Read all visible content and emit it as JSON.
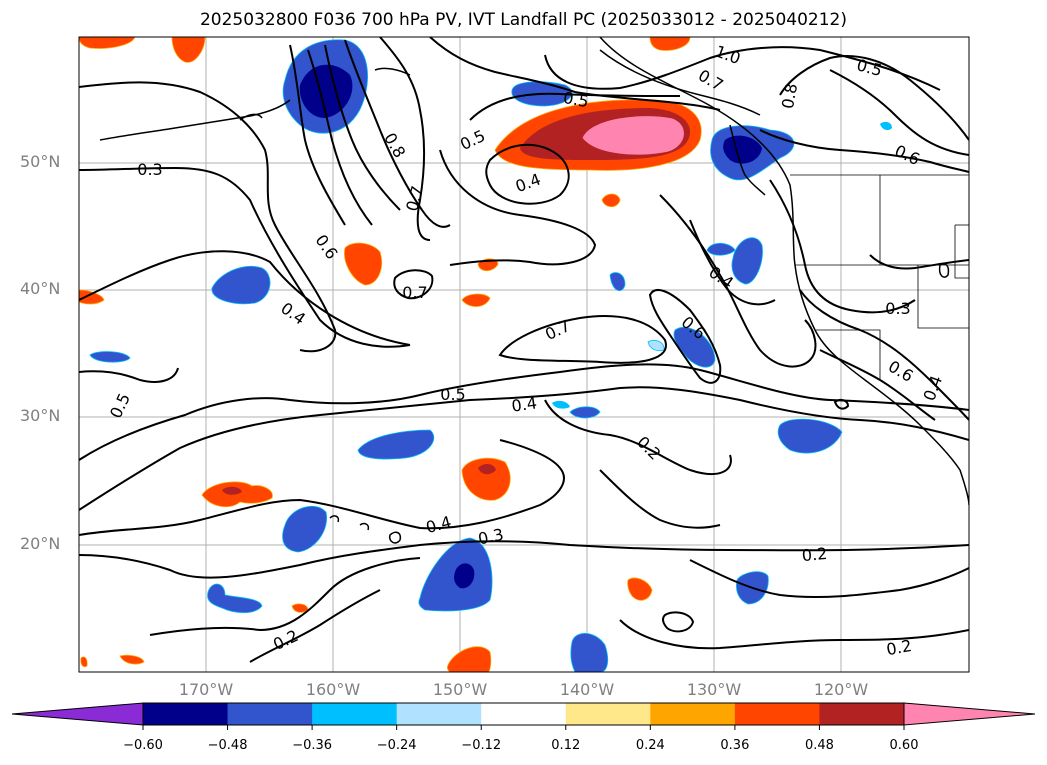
{
  "title": "2025032800 F036 700 hPa PV, IVT Landfall PC (2025033012 - 2025040212)",
  "lat_labels": [
    "50°N",
    "40°N",
    "30°N",
    "20°N"
  ],
  "lon_labels": [
    "170°W",
    "160°W",
    "150°W",
    "140°W",
    "130°W",
    "120°W"
  ],
  "colorbar": {
    "ticks": [
      "−0.60",
      "−0.48",
      "−0.36",
      "−0.24",
      "−0.12",
      "0.12",
      "0.24",
      "0.36",
      "0.48",
      "0.60"
    ],
    "colors": [
      "#8a2bd6",
      "#00008b",
      "#3254cc",
      "#00bfff",
      "#b0e2ff",
      "#ffffff",
      "#ffe88a",
      "#ffa500",
      "#ff4500",
      "#b22222",
      "#ff85b0"
    ]
  },
  "contour_labels": [
    {
      "text": "1.0"
    },
    {
      "text": "0.7"
    },
    {
      "text": "0.5"
    },
    {
      "text": "0.5"
    },
    {
      "text": "0.8"
    },
    {
      "text": "0.8"
    },
    {
      "text": "0.5"
    },
    {
      "text": "0.4"
    },
    {
      "text": "0.6"
    },
    {
      "text": "0.3"
    },
    {
      "text": "0.7"
    },
    {
      "text": "0.6"
    },
    {
      "text": "0.7"
    },
    {
      "text": "0.4"
    },
    {
      "text": "0.4"
    },
    {
      "text": "0.3"
    },
    {
      "text": "0.7"
    },
    {
      "text": "0.6"
    },
    {
      "text": "0.6"
    },
    {
      "text": "0.4"
    },
    {
      "text": "0.5"
    },
    {
      "text": "0.4"
    },
    {
      "text": "0.5"
    },
    {
      "text": "0.2"
    },
    {
      "text": "0.4"
    },
    {
      "text": "0.3"
    },
    {
      "text": "0.2"
    },
    {
      "text": "0.2"
    },
    {
      "text": "0.2"
    }
  ]
}
